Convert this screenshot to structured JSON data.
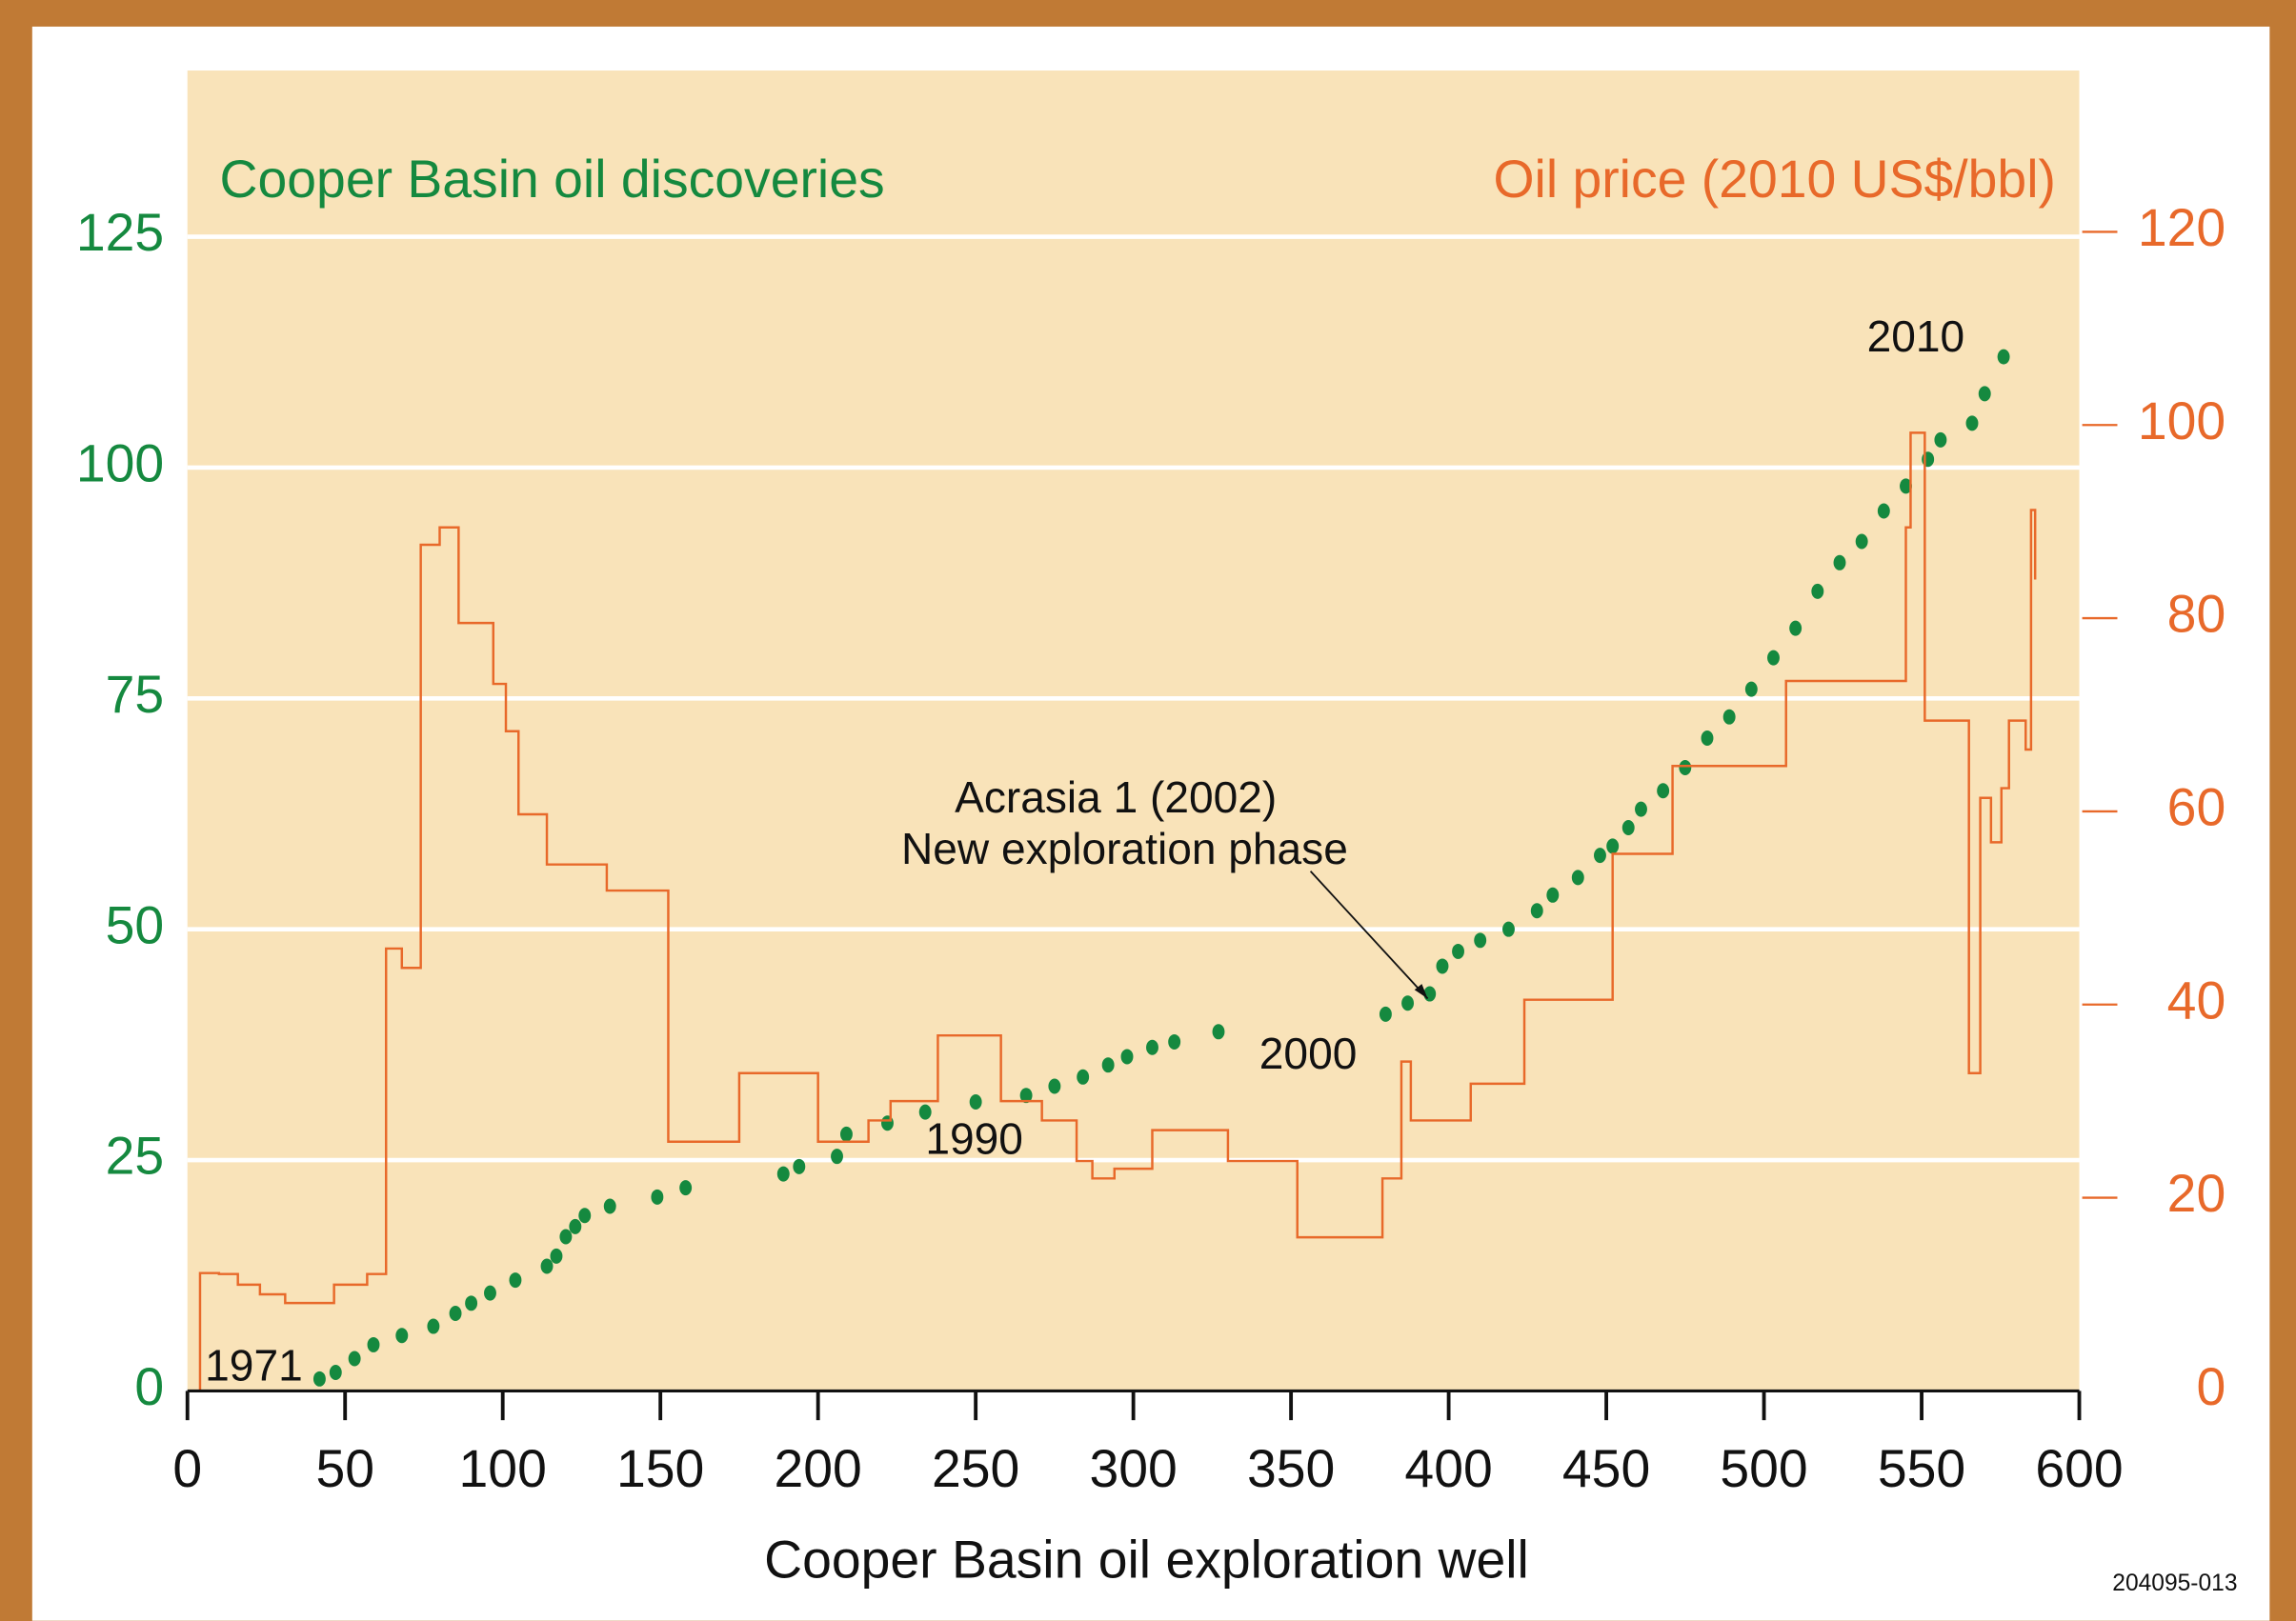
{
  "chart_data": {
    "type": "scatter-and-step",
    "title": "Cooper Basin oil discoveries",
    "y2_title": "Oil price (2010 US$/bbl)",
    "x_label": "Cooper Basin oil exploration well",
    "footnote": "204095-013",
    "annotations": [
      "1971",
      "1990",
      "2000",
      "2010",
      "Acrasia 1 (2002)",
      "New exploration phase"
    ],
    "xlim": [
      0,
      600
    ],
    "xticks": [
      0,
      50,
      100,
      150,
      200,
      250,
      300,
      350,
      400,
      450,
      500,
      550,
      600
    ],
    "ylim": [
      0,
      143
    ],
    "yticks": [
      0,
      25,
      50,
      75,
      100,
      125
    ],
    "y2lim": [
      0,
      136.7
    ],
    "y2ticks": [
      0,
      20,
      40,
      60,
      80,
      100,
      120
    ],
    "grid": true,
    "series": [
      {
        "name": "Cooper Basin oil discoveries",
        "type": "scatter",
        "color": "#15893f",
        "x": [
          41.9,
          47,
          53,
          59,
          68,
          78,
          85,
          90,
          96,
          104,
          114,
          117,
          120,
          123,
          126,
          134,
          149,
          158,
          189,
          194,
          206,
          209,
          222,
          234,
          250,
          266,
          275,
          284,
          292,
          298,
          306,
          313,
          327,
          380,
          387,
          394,
          398,
          403,
          410,
          419,
          428,
          433,
          441,
          448,
          452,
          457,
          461,
          468,
          475,
          482,
          489,
          496,
          503,
          510,
          517,
          524,
          531,
          538,
          545,
          552,
          556,
          566,
          570,
          576
        ],
        "values": [
          1.3,
          2,
          3.5,
          5,
          6,
          7,
          8.4,
          9.5,
          10.6,
          12,
          13.5,
          14.6,
          16.7,
          17.8,
          19,
          20,
          21,
          22,
          23.5,
          24.3,
          25.4,
          27.8,
          29,
          30.2,
          31.3,
          32,
          33,
          34,
          35.3,
          36.2,
          37.2,
          37.8,
          38.9,
          40.8,
          42,
          43,
          46,
          47.6,
          48.8,
          50,
          52,
          53.7,
          55.6,
          58,
          59,
          61,
          63,
          65,
          67.5,
          70.7,
          73,
          76,
          79.4,
          82.6,
          86.6,
          89.7,
          92,
          95.3,
          98,
          100.9,
          103,
          104.8,
          108,
          112
        ]
      },
      {
        "name": "Oil price (2010 US$/bbl)",
        "type": "line",
        "drawstyle": "steps-post",
        "axis": "y2",
        "color": "#e8692a",
        "x": [
          3,
          4,
          10,
          16,
          23,
          31,
          46.5,
          57,
          63,
          68,
          74,
          80,
          86,
          97,
          101,
          105,
          114,
          133,
          152.5,
          175,
          200,
          216,
          223,
          238,
          258,
          271,
          282,
          287,
          294,
          306,
          330,
          352,
          379,
          385,
          388,
          407,
          424,
          452,
          471,
          507,
          545,
          546.5,
          551,
          565,
          568.6,
          572,
          575.3,
          577.7,
          583,
          584.7,
          586
        ],
        "values": [
          0,
          12.2,
          12.1,
          11,
          10,
          9.1,
          11,
          12.1,
          45.8,
          43.8,
          87.6,
          89.4,
          79.5,
          73.2,
          68.3,
          59.7,
          54.5,
          51.8,
          25.8,
          32.9,
          25.8,
          28,
          30,
          36.8,
          30,
          28,
          23.8,
          22,
          23,
          27,
          23.8,
          15.9,
          22,
          34.1,
          28,
          31.8,
          40.5,
          55.6,
          64.7,
          73.5,
          89.4,
          99.2,
          69.4,
          32.9,
          61.4,
          56.8,
          62.4,
          69.4,
          66.4,
          91.2,
          84
        ]
      }
    ]
  }
}
